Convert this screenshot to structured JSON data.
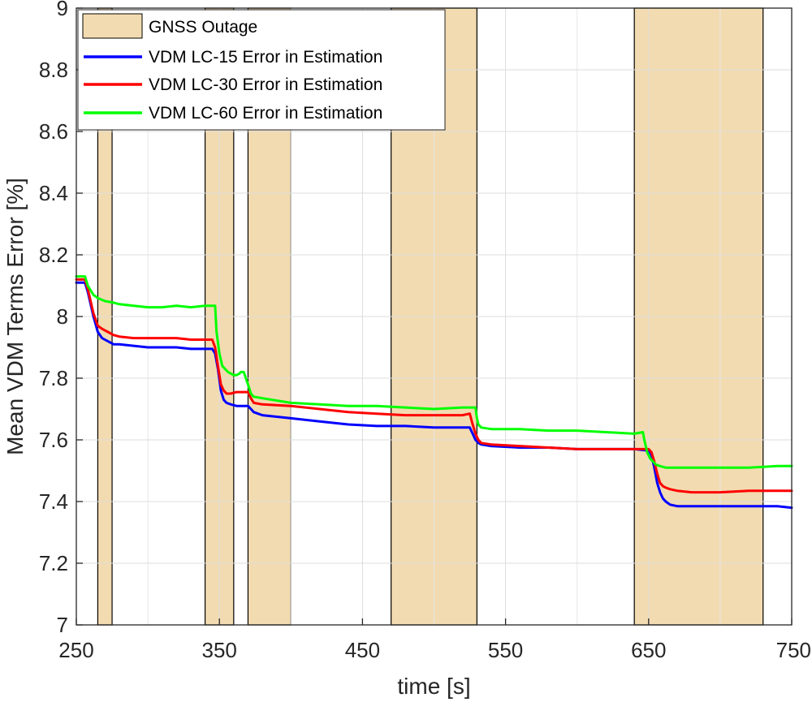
{
  "chart_data": {
    "type": "line",
    "xlabel": "time [s]",
    "ylabel": "Mean VDM Terms Error [%]",
    "xlim": [
      250,
      750
    ],
    "ylim": [
      7,
      9
    ],
    "xticks": [
      250,
      350,
      450,
      550,
      650,
      750
    ],
    "yticks": [
      7,
      7.2,
      7.4,
      7.6,
      7.8,
      8,
      8.2,
      8.4,
      8.6,
      8.8,
      9
    ],
    "grid": true,
    "legend_position": "top-left",
    "outage": {
      "name": "GNSS Outage",
      "color": "#f3dbb1",
      "intervals": [
        [
          265,
          275
        ],
        [
          340,
          360
        ],
        [
          370,
          400
        ],
        [
          470,
          530
        ],
        [
          640,
          730
        ]
      ]
    },
    "series": [
      {
        "name": "VDM LC-15 Error in Estimation",
        "color": "#0000ff",
        "x": [
          250,
          256,
          258,
          262,
          265,
          268,
          272,
          276,
          280,
          290,
          300,
          310,
          320,
          330,
          340,
          345,
          347,
          349,
          351,
          353,
          355,
          358,
          362,
          366,
          370,
          372,
          374,
          380,
          400,
          420,
          440,
          460,
          480,
          500,
          510,
          520,
          525,
          527,
          529,
          531,
          533,
          540,
          560,
          580,
          600,
          620,
          640,
          650,
          652,
          654,
          656,
          658,
          660,
          662,
          665,
          670,
          680,
          700,
          720,
          740,
          750
        ],
        "y": [
          8.11,
          8.11,
          8.08,
          8.0,
          7.95,
          7.93,
          7.92,
          7.91,
          7.91,
          7.905,
          7.9,
          7.9,
          7.9,
          7.895,
          7.895,
          7.895,
          7.88,
          7.83,
          7.76,
          7.73,
          7.72,
          7.715,
          7.71,
          7.71,
          7.71,
          7.7,
          7.69,
          7.68,
          7.67,
          7.66,
          7.65,
          7.645,
          7.645,
          7.64,
          7.64,
          7.64,
          7.64,
          7.62,
          7.6,
          7.59,
          7.585,
          7.58,
          7.575,
          7.575,
          7.57,
          7.57,
          7.57,
          7.565,
          7.55,
          7.51,
          7.46,
          7.43,
          7.41,
          7.4,
          7.39,
          7.385,
          7.385,
          7.385,
          7.385,
          7.385,
          7.38
        ]
      },
      {
        "name": "VDM LC-30 Error in Estimation",
        "color": "#ff0000",
        "x": [
          250,
          256,
          258,
          262,
          265,
          268,
          272,
          276,
          280,
          290,
          300,
          310,
          320,
          330,
          340,
          345,
          347,
          349,
          351,
          353,
          355,
          358,
          362,
          366,
          370,
          372,
          374,
          380,
          400,
          420,
          440,
          460,
          480,
          500,
          510,
          520,
          525,
          527,
          529,
          531,
          533,
          540,
          560,
          580,
          600,
          620,
          640,
          650,
          652,
          654,
          656,
          658,
          660,
          662,
          665,
          670,
          680,
          700,
          720,
          740,
          750
        ],
        "y": [
          8.12,
          8.12,
          8.09,
          8.01,
          7.97,
          7.96,
          7.95,
          7.94,
          7.935,
          7.93,
          7.93,
          7.93,
          7.93,
          7.925,
          7.925,
          7.925,
          7.9,
          7.84,
          7.78,
          7.76,
          7.75,
          7.75,
          7.755,
          7.755,
          7.755,
          7.735,
          7.72,
          7.715,
          7.71,
          7.7,
          7.69,
          7.685,
          7.68,
          7.68,
          7.68,
          7.68,
          7.685,
          7.65,
          7.62,
          7.6,
          7.59,
          7.585,
          7.58,
          7.575,
          7.57,
          7.57,
          7.57,
          7.57,
          7.56,
          7.53,
          7.49,
          7.46,
          7.45,
          7.445,
          7.44,
          7.435,
          7.43,
          7.43,
          7.435,
          7.435,
          7.435
        ]
      },
      {
        "name": "VDM LC-60 Error in Estimation",
        "color": "#00ff00",
        "x": [
          250,
          256,
          258,
          262,
          265,
          270,
          276,
          280,
          290,
          300,
          310,
          320,
          330,
          340,
          347,
          348,
          350,
          352,
          354,
          356,
          360,
          362,
          364,
          365,
          367,
          370,
          372,
          374,
          380,
          400,
          420,
          440,
          460,
          480,
          500,
          520,
          529,
          530,
          531,
          533,
          540,
          560,
          580,
          600,
          620,
          640,
          646,
          647,
          649,
          651,
          653,
          655,
          658,
          662,
          670,
          680,
          700,
          720,
          740,
          750
        ],
        "y": [
          8.13,
          8.13,
          8.1,
          8.07,
          8.06,
          8.05,
          8.045,
          8.04,
          8.035,
          8.03,
          8.03,
          8.035,
          8.03,
          8.035,
          8.035,
          7.95,
          7.88,
          7.84,
          7.83,
          7.82,
          7.81,
          7.81,
          7.815,
          7.82,
          7.82,
          7.78,
          7.75,
          7.74,
          7.735,
          7.72,
          7.715,
          7.71,
          7.71,
          7.705,
          7.7,
          7.705,
          7.705,
          7.67,
          7.65,
          7.64,
          7.635,
          7.635,
          7.63,
          7.63,
          7.625,
          7.62,
          7.625,
          7.6,
          7.56,
          7.54,
          7.53,
          7.52,
          7.515,
          7.51,
          7.51,
          7.51,
          7.51,
          7.51,
          7.515,
          7.515
        ]
      }
    ]
  }
}
